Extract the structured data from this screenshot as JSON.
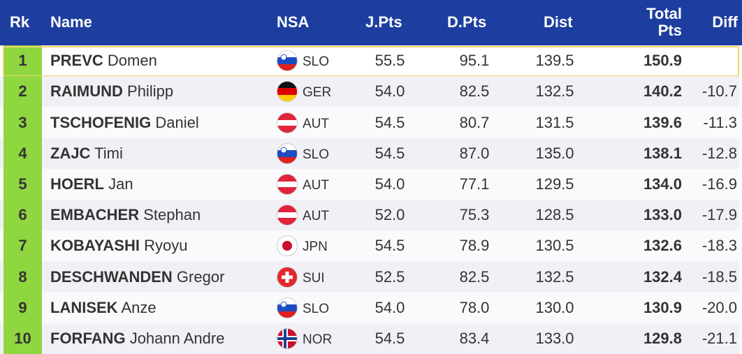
{
  "header": {
    "rank": "Rk",
    "name": "Name",
    "nsa": "NSA",
    "jpts": "J.Pts",
    "dpts": "D.Pts",
    "dist": "Dist",
    "total": "Total Pts",
    "diff": "Diff"
  },
  "rows": [
    {
      "rank": "1",
      "last": "PREVC",
      "first": "Domen",
      "nsa": "SLO",
      "jpts": "55.5",
      "dpts": "95.1",
      "dist": "139.5",
      "total": "150.9"
    },
    {
      "rank": "2",
      "last": "RAIMUND",
      "first": "Philipp",
      "nsa": "GER",
      "jpts": "54.0",
      "dpts": "82.5",
      "dist": "132.5",
      "total": "140.2",
      "diff": "-10.7"
    },
    {
      "rank": "3",
      "last": "TSCHOFENIG",
      "first": "Daniel",
      "nsa": "AUT",
      "jpts": "54.5",
      "dpts": "80.7",
      "dist": "131.5",
      "total": "139.6",
      "diff": "-11.3"
    },
    {
      "rank": "4",
      "last": "ZAJC",
      "first": "Timi",
      "nsa": "SLO",
      "jpts": "54.5",
      "dpts": "87.0",
      "dist": "135.0",
      "total": "138.1",
      "diff": "-12.8"
    },
    {
      "rank": "5",
      "last": "HOERL",
      "first": "Jan",
      "nsa": "AUT",
      "jpts": "54.0",
      "dpts": "77.1",
      "dist": "129.5",
      "total": "134.0",
      "diff": "-16.9"
    },
    {
      "rank": "6",
      "last": "EMBACHER",
      "first": "Stephan",
      "nsa": "AUT",
      "jpts": "52.0",
      "dpts": "75.3",
      "dist": "128.5",
      "total": "133.0",
      "diff": "-17.9"
    },
    {
      "rank": "7",
      "last": "KOBAYASHI",
      "first": "Ryoyu",
      "nsa": "JPN",
      "jpts": "54.5",
      "dpts": "78.9",
      "dist": "130.5",
      "total": "132.6",
      "diff": "-18.3"
    },
    {
      "rank": "8",
      "last": "DESCHWANDEN",
      "first": "Gregor",
      "nsa": "SUI",
      "jpts": "52.5",
      "dpts": "82.5",
      "dist": "132.5",
      "total": "132.4",
      "diff": "-18.5"
    },
    {
      "rank": "9",
      "last": "LANISEK",
      "first": "Anze",
      "nsa": "SLO",
      "jpts": "54.0",
      "dpts": "78.0",
      "dist": "130.0",
      "total": "130.9",
      "diff": "-20.0"
    },
    {
      "rank": "10",
      "last": "FORFANG",
      "first": "Johann Andre",
      "nsa": "NOR",
      "jpts": "54.5",
      "dpts": "83.4",
      "dist": "133.0",
      "total": "129.8",
      "diff": "-21.1"
    }
  ]
}
